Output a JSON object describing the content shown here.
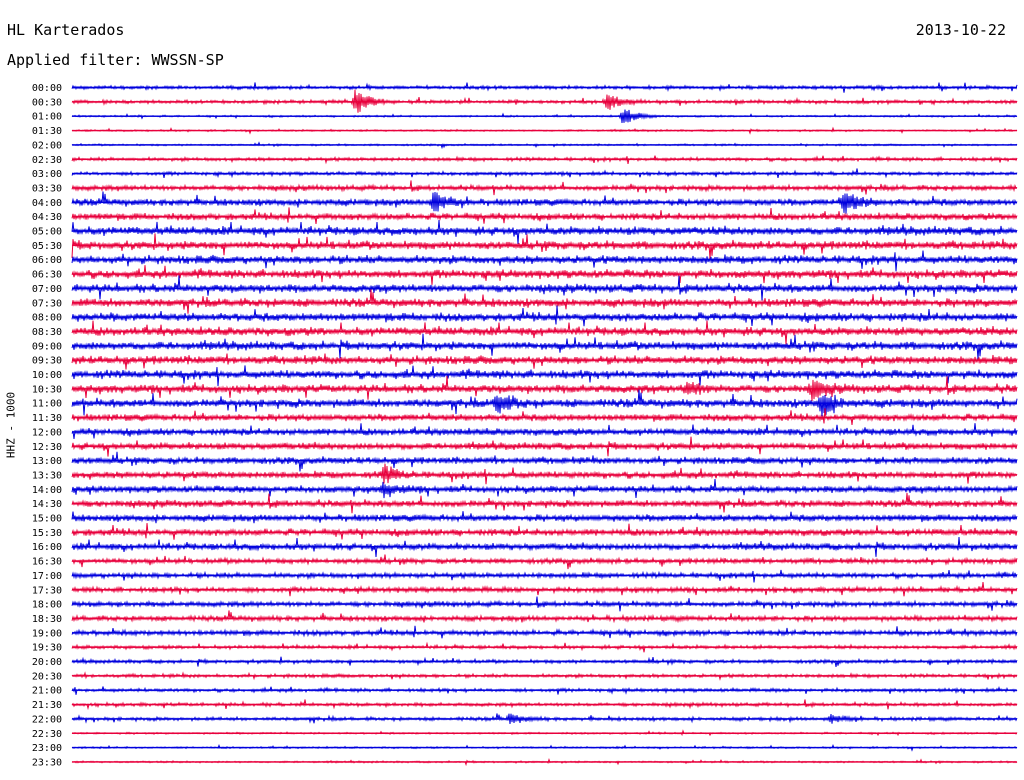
{
  "header": {
    "station": "HL Karterados",
    "date": "2013-10-22",
    "filter_label": "Applied filter: WWSSN-SP"
  },
  "chart_data": {
    "type": "line",
    "title": "HL Karterados",
    "ylabel": "HHZ - 1000",
    "row_interval_minutes": 30,
    "rows": [
      "00:00",
      "00:30",
      "01:00",
      "01:30",
      "02:00",
      "02:30",
      "03:00",
      "03:30",
      "04:00",
      "04:30",
      "05:00",
      "05:30",
      "06:00",
      "06:30",
      "07:00",
      "07:30",
      "08:00",
      "08:30",
      "09:00",
      "09:30",
      "10:00",
      "10:30",
      "11:00",
      "11:30",
      "12:00",
      "12:30",
      "13:00",
      "13:30",
      "14:00",
      "14:30",
      "15:00",
      "15:30",
      "16:00",
      "16:30",
      "17:00",
      "17:30",
      "18:00",
      "18:30",
      "19:00",
      "19:30",
      "20:00",
      "20:30",
      "21:00",
      "21:30",
      "22:00",
      "22:30",
      "23:00",
      "23:30"
    ],
    "series_colors": [
      "#0000dd",
      "#e8003c"
    ],
    "noise_level": [
      2,
      2,
      1,
      1,
      1,
      2,
      2,
      3,
      4,
      4,
      5,
      5,
      5,
      5,
      5,
      5,
      5,
      5,
      5,
      5,
      5,
      5,
      5,
      4,
      4,
      4,
      4,
      4,
      4,
      4,
      4,
      4,
      4,
      3,
      3,
      3,
      3,
      3,
      3,
      2,
      2,
      2,
      2,
      2,
      2,
      1,
      1,
      1
    ],
    "events": [
      {
        "row": 1,
        "minute": 9.0,
        "amplitude": 14
      },
      {
        "row": 1,
        "minute": 17.0,
        "amplitude": 8
      },
      {
        "row": 2,
        "minute": 17.5,
        "amplitude": 9
      },
      {
        "row": 8,
        "minute": 11.5,
        "amplitude": 12
      },
      {
        "row": 8,
        "minute": 24.5,
        "amplitude": 12
      },
      {
        "row": 21,
        "minute": 19.5,
        "amplitude": 8
      },
      {
        "row": 21,
        "minute": 23.5,
        "amplitude": 9
      },
      {
        "row": 22,
        "minute": 13.5,
        "amplitude": 11
      },
      {
        "row": 22,
        "minute": 23.8,
        "amplitude": 12
      },
      {
        "row": 27,
        "minute": 9.9,
        "amplitude": 9
      },
      {
        "row": 28,
        "minute": 9.9,
        "amplitude": 7
      },
      {
        "row": 44,
        "minute": 13.9,
        "amplitude": 5
      },
      {
        "row": 44,
        "minute": 24.1,
        "amplitude": 5
      }
    ]
  }
}
